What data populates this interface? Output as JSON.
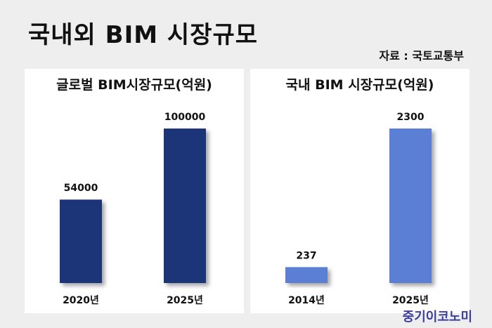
{
  "header": {
    "title": "국내외 BIM 시장규모",
    "source": "자료 : 국토교통부"
  },
  "watermark": "중기이코노미",
  "chart_data": [
    {
      "type": "bar",
      "title": "글로벌 BIM시장규모(억원)",
      "categories": [
        "2020년",
        "2025년"
      ],
      "values": [
        54000,
        100000
      ],
      "ylim": [
        0,
        100000
      ],
      "color": "#1f3679",
      "grid": false
    },
    {
      "type": "bar",
      "title": "국내 BIM 시장규모(억원)",
      "categories": [
        "2014년",
        "2025년"
      ],
      "values": [
        237,
        2300
      ],
      "ylim": [
        0,
        2300
      ],
      "color": "#5b7fd6",
      "grid": false
    }
  ]
}
